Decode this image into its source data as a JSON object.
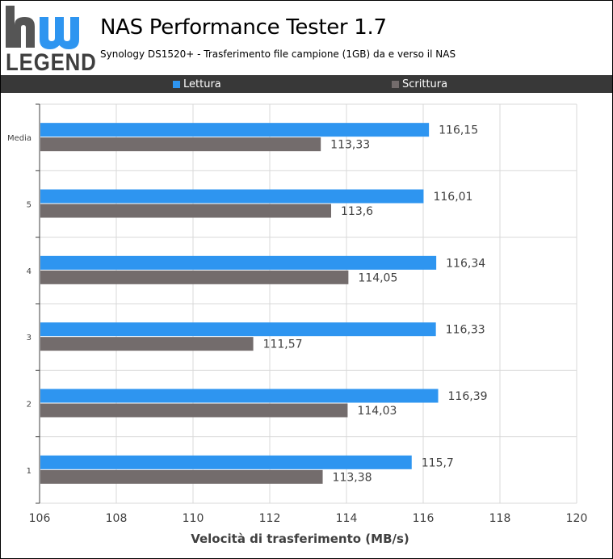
{
  "header": {
    "logo_text": "LEGEND",
    "title": "NAS Performance Tester 1.7",
    "subtitle": "Synology DS1520+ - Trasferimento file campione (1GB) da e verso il NAS"
  },
  "colors": {
    "read": "#2e95f0",
    "write": "#736c6c",
    "legend_bg": "#383838",
    "grid": "#d9d9d9",
    "logo_accent": "#2e95f0",
    "logo_dark": "#555555"
  },
  "chart_data": {
    "type": "bar",
    "orientation": "horizontal",
    "categories": [
      "Media",
      "5",
      "4",
      "3",
      "2",
      "1"
    ],
    "series": [
      {
        "name": "Lettura",
        "values": [
          116.15,
          116.01,
          116.34,
          116.33,
          116.39,
          115.7
        ],
        "labels": [
          "116,15",
          "116,01",
          "116,34",
          "116,33",
          "116,39",
          "115,7"
        ]
      },
      {
        "name": "Scrittura",
        "values": [
          113.33,
          113.6,
          114.05,
          111.57,
          114.03,
          113.38
        ],
        "labels": [
          "113,33",
          "113,6",
          "114,05",
          "111,57",
          "114,03",
          "113,38"
        ]
      }
    ],
    "xlim": [
      106,
      120
    ],
    "xticks": [
      106,
      108,
      110,
      112,
      114,
      116,
      118,
      120
    ],
    "xlabel": "Velocità di trasferimento (MB/s)",
    "ylabel": "",
    "grid": true,
    "legend_position": "top"
  }
}
